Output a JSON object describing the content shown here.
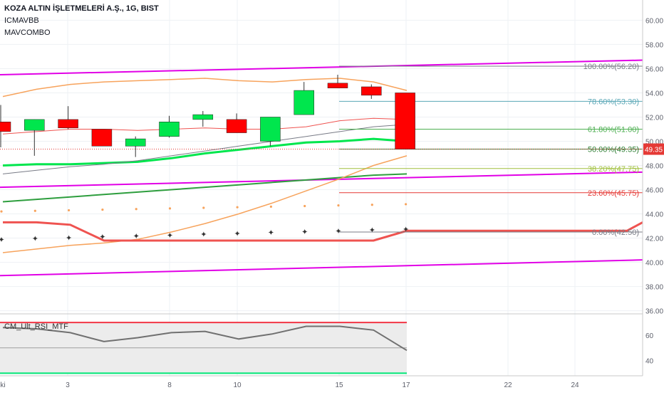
{
  "header": {
    "symbol_line": "KOZA ALTIN İŞLETMELERİ A.Ş., 1G, BIST",
    "indicator_1": "ICMAVBB",
    "indicator_2": "MAVCOMBO"
  },
  "chart_data": {
    "type": "candlestick",
    "title": "KOZA ALTIN İŞLETMELERİ A.Ş., 1G, BIST",
    "x_tick_labels": [
      "ki",
      "3",
      "8",
      "10",
      "15",
      "17",
      "22",
      "24"
    ],
    "y_tick_labels": [
      "60.00",
      "58.00",
      "56.00",
      "54.00",
      "52.00",
      "50.00",
      "48.00",
      "46.00",
      "44.00",
      "42.00",
      "40.00",
      "38.00",
      "36.00"
    ],
    "ylim": [
      35.8,
      61.2
    ],
    "last_price_label": "49.35",
    "last_price": 49.35,
    "candles": [
      {
        "open": 51.6,
        "high": 53.0,
        "low": 49.5,
        "close": 50.8,
        "color": "red"
      },
      {
        "open": 50.9,
        "high": 51.8,
        "low": 48.8,
        "close": 51.8,
        "color": "green"
      },
      {
        "open": 51.8,
        "high": 52.9,
        "low": 51.0,
        "close": 51.1,
        "color": "red"
      },
      {
        "open": 51.0,
        "high": 51.0,
        "low": 49.6,
        "close": 49.6,
        "color": "red"
      },
      {
        "open": 49.6,
        "high": 50.4,
        "low": 48.7,
        "close": 50.2,
        "color": "green"
      },
      {
        "open": 50.4,
        "high": 52.1,
        "low": 50.3,
        "close": 51.6,
        "color": "green"
      },
      {
        "open": 51.8,
        "high": 52.5,
        "low": 51.2,
        "close": 52.2,
        "color": "green"
      },
      {
        "open": 51.8,
        "high": 52.3,
        "low": 50.7,
        "close": 50.7,
        "color": "red"
      },
      {
        "open": 50.0,
        "high": 52.0,
        "low": 49.6,
        "close": 52.0,
        "color": "green"
      },
      {
        "open": 52.2,
        "high": 54.9,
        "low": 52.2,
        "close": 54.2,
        "color": "green"
      },
      {
        "open": 54.8,
        "high": 55.5,
        "low": 54.4,
        "close": 54.4,
        "color": "red"
      },
      {
        "open": 54.5,
        "high": 54.7,
        "low": 53.5,
        "close": 53.8,
        "color": "red"
      },
      {
        "open": 54.0,
        "high": 54.0,
        "low": 49.35,
        "close": 49.35,
        "color": "red"
      }
    ],
    "fibonacci": [
      {
        "label": "100.00%(56.20)",
        "value": 56.2,
        "color": "#787b86"
      },
      {
        "label": "78.60%(53.30)",
        "value": 53.3,
        "color": "#5aa7b6"
      },
      {
        "label": "61.80%(51.00)",
        "value": 51.0,
        "color": "#4caf50"
      },
      {
        "label": "50.00%(49.35)",
        "value": 49.35,
        "color": "#2e7d32"
      },
      {
        "label": "38.20%(47.75)",
        "value": 47.75,
        "color": "#9fbf3b"
      },
      {
        "label": "23.60%(45.75)",
        "value": 45.75,
        "color": "#e53935"
      },
      {
        "label": "0.00%(42.50)",
        "value": 42.5,
        "color": "#787b86"
      }
    ],
    "channel_lines": [
      {
        "name": "upper",
        "from": 55.5,
        "to": 56.7,
        "color": "#e100e6"
      },
      {
        "name": "middle",
        "from": 46.2,
        "to": 47.45,
        "color": "#e100e6"
      },
      {
        "name": "lower",
        "from": 38.9,
        "to": 40.2,
        "color": "#e100e6"
      }
    ],
    "oscillator": {
      "name": "CM_Ult_RSI_MTF",
      "y_tick_labels": [
        "60",
        "40"
      ],
      "ylim": [
        28,
        74
      ],
      "upper_band": 70,
      "lower_band": 30,
      "mid_line": 50,
      "values": [
        66,
        65,
        62,
        55,
        58,
        62,
        63,
        57,
        61,
        67,
        67,
        64,
        48
      ]
    }
  }
}
